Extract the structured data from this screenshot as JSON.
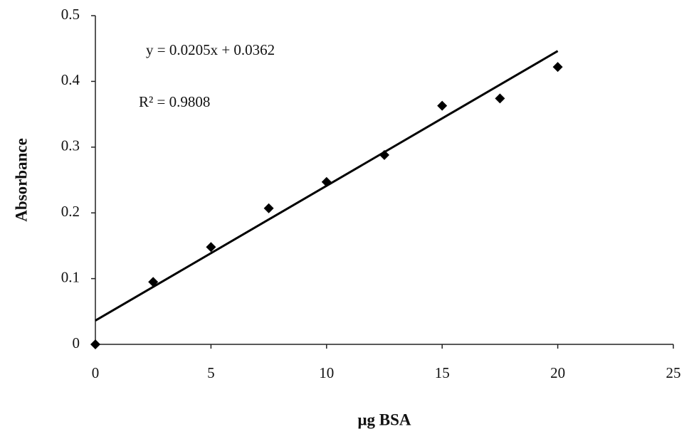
{
  "chart_data": {
    "type": "scatter",
    "x_label": "μg BSA",
    "y_label": "Absorbance",
    "x": [
      0,
      2.5,
      5,
      7.5,
      10,
      12.5,
      15,
      17.5,
      20
    ],
    "values": [
      0,
      0.095,
      0.148,
      0.207,
      0.247,
      0.288,
      0.363,
      0.374,
      0.422
    ],
    "color": "#000000",
    "xlim": [
      0,
      25
    ],
    "xticks": [
      0,
      5,
      10,
      15,
      20,
      25
    ],
    "ylim": [
      0,
      0.5
    ],
    "yticks": [
      0,
      0.1,
      0.2,
      0.3,
      0.4,
      0.5
    ],
    "grid": false,
    "trendline": {
      "slope": 0.0205,
      "intercept": 0.0362,
      "equation": "y = 0.0205x + 0.0362",
      "r_squared": "R² = 0.9808"
    }
  }
}
